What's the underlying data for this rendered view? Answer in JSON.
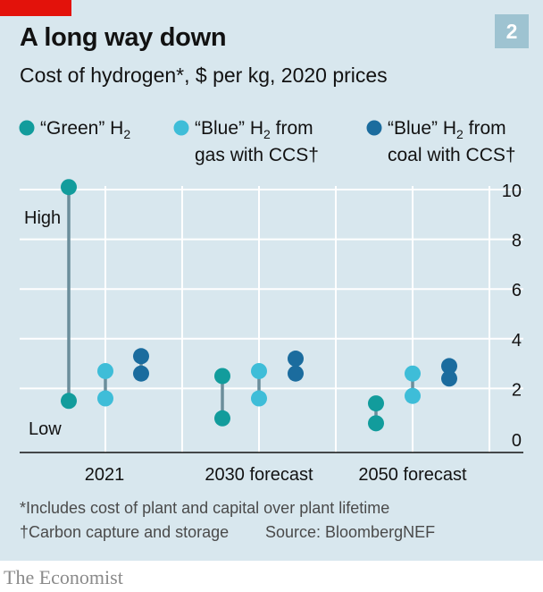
{
  "title": "A long way down",
  "subtitle": "Cost of hydrogen*, $ per kg, 2020 prices",
  "chart_number": "2",
  "footnotes": [
    "*Includes cost of plant and capital over plant lifetime",
    "†Carbon capture and storage"
  ],
  "source": "Source: BloombergNEF",
  "brand": "The Economist",
  "colors": {
    "background": "#d8e7ee",
    "green_h2": "#129c9c",
    "blue_gas": "#3ebdd8",
    "blue_coal": "#1b6c9e",
    "gridline": "#ffffff",
    "range_line": "#6b8e9b"
  },
  "chart_data": {
    "type": "range-dot",
    "title": "A long way down",
    "subtitle": "Cost of hydrogen*, $ per kg, 2020 prices",
    "categories": [
      "2021",
      "2030 forecast",
      "2050 forecast"
    ],
    "ylim": [
      0,
      10
    ],
    "yticks": [
      0,
      2,
      4,
      6,
      8,
      10
    ],
    "grid": true,
    "y_axis_side": "right",
    "range_labels": {
      "high": "High",
      "low": "Low"
    },
    "legend": [
      {
        "line1": "“Green” H",
        "sub": "2",
        "line2": ""
      },
      {
        "line1": "“Blue” H",
        "sub": "2",
        "line1_end": " from",
        "line2": "gas with CCS†"
      },
      {
        "line1": "“Blue” H",
        "sub": "2",
        "line1_end": " from",
        "line2": "coal with CCS†"
      }
    ],
    "series": [
      {
        "key": "green",
        "low": [
          1.5,
          0.8,
          0.6
        ],
        "high": [
          10.1,
          2.5,
          1.4
        ]
      },
      {
        "key": "blue_gas",
        "low": [
          1.6,
          1.6,
          1.7
        ],
        "high": [
          2.7,
          2.7,
          2.6
        ]
      },
      {
        "key": "blue_coal",
        "low": [
          2.6,
          2.6,
          2.4
        ],
        "high": [
          3.3,
          3.2,
          2.9
        ]
      }
    ]
  }
}
